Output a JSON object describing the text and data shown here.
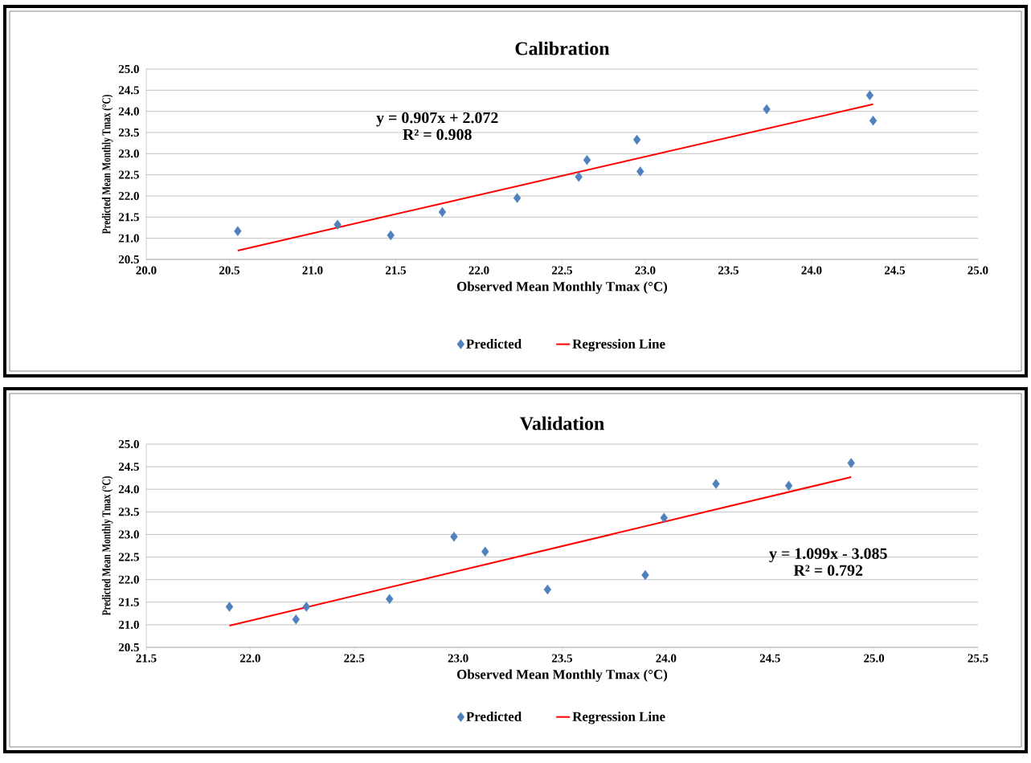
{
  "chart_data": [
    {
      "type": "scatter",
      "title": "Calibration",
      "xlabel": "Observed  Mean Monthly Tmax (°C)",
      "ylabel": "Predicted Mean Monthly Tmax (°C)",
      "annotations": [
        "y = 0.907x + 2.072",
        "R² = 0.908"
      ],
      "series": [
        {
          "name": "Predicted",
          "color": "#4f81bd",
          "x": [
            20.55,
            21.15,
            21.47,
            21.78,
            22.23,
            22.6,
            22.65,
            22.95,
            22.97,
            23.73,
            24.35,
            24.37
          ],
          "values": [
            21.17,
            21.32,
            21.07,
            21.62,
            21.95,
            22.45,
            22.85,
            23.33,
            22.58,
            24.05,
            24.38,
            23.78
          ]
        },
        {
          "name": "Regression Line",
          "type": "line",
          "color": "#ff0000",
          "marker": "none",
          "line_style": "solid",
          "x": [
            20.55,
            24.37
          ],
          "values": [
            20.71,
            24.17
          ]
        }
      ],
      "marker": "diamond",
      "grid": "y",
      "legend": "bottom",
      "xlim": [
        20,
        25
      ],
      "ylim": [
        20.5,
        25
      ],
      "xticks": [
        {
          "value": 20,
          "label": "20.0"
        },
        {
          "value": 20.5,
          "label": "20.5"
        },
        {
          "value": 21,
          "label": "21.0"
        },
        {
          "value": 21.5,
          "label": "21.5"
        },
        {
          "value": 22,
          "label": "22.0"
        },
        {
          "value": 22.5,
          "label": "22.5"
        },
        {
          "value": 23,
          "label": "23.0"
        },
        {
          "value": 23.5,
          "label": "23.5"
        },
        {
          "value": 24,
          "label": "24.0"
        },
        {
          "value": 24.5,
          "label": "24.5"
        },
        {
          "value": 25,
          "label": "25.0"
        }
      ],
      "yticks": [
        {
          "value": 20.5,
          "label": "20.5"
        },
        {
          "value": 21,
          "label": "21.0"
        },
        {
          "value": 21.5,
          "label": "21.5"
        },
        {
          "value": 22,
          "label": "22.0"
        },
        {
          "value": 22.5,
          "label": "22.5"
        },
        {
          "value": 23,
          "label": "23.0"
        },
        {
          "value": 23.5,
          "label": "23.5"
        },
        {
          "value": 24,
          "label": "24.0"
        },
        {
          "value": 24.5,
          "label": "24.5"
        },
        {
          "value": 25,
          "label": "25.0"
        }
      ]
    },
    {
      "type": "scatter",
      "title": "Validation",
      "xlabel": "Observed  Mean Monthly Tmax (°C)",
      "ylabel": "Predicted Mean Monthly Tmax (°C)",
      "annotations": [
        "y = 1.099x - 3.085",
        "R² = 0.792"
      ],
      "series": [
        {
          "name": "Predicted",
          "color": "#4f81bd",
          "x": [
            21.9,
            22.22,
            22.27,
            22.67,
            22.98,
            23.13,
            23.43,
            23.9,
            23.99,
            24.24,
            24.59,
            24.89
          ],
          "values": [
            21.4,
            21.12,
            21.4,
            21.57,
            22.95,
            22.62,
            21.78,
            22.1,
            23.37,
            24.12,
            24.08,
            24.58
          ]
        },
        {
          "name": "Regression Line",
          "type": "line",
          "color": "#ff0000",
          "marker": "none",
          "line_style": "solid",
          "x": [
            21.9,
            24.89
          ],
          "values": [
            20.98,
            24.27
          ]
        }
      ],
      "marker": "diamond",
      "grid": "y",
      "legend": "bottom",
      "xlim": [
        21.5,
        25.5
      ],
      "ylim": [
        20.5,
        25
      ],
      "xticks": [
        {
          "value": 21.5,
          "label": "21.5"
        },
        {
          "value": 22,
          "label": "22.0"
        },
        {
          "value": 22.5,
          "label": "22.5"
        },
        {
          "value": 23,
          "label": "23.0"
        },
        {
          "value": 23.5,
          "label": "23.5"
        },
        {
          "value": 24,
          "label": "24.0"
        },
        {
          "value": 24.5,
          "label": "24.5"
        },
        {
          "value": 25,
          "label": "25.0"
        },
        {
          "value": 25.5,
          "label": "25.5"
        }
      ],
      "yticks": [
        {
          "value": 20.5,
          "label": "20.5"
        },
        {
          "value": 21,
          "label": "21.0"
        },
        {
          "value": 21.5,
          "label": "21.5"
        },
        {
          "value": 22,
          "label": "22.0"
        },
        {
          "value": 22.5,
          "label": "22.5"
        },
        {
          "value": 23,
          "label": "23.0"
        },
        {
          "value": 23.5,
          "label": "23.5"
        },
        {
          "value": 24,
          "label": "24.0"
        },
        {
          "value": 24.5,
          "label": "24.5"
        },
        {
          "value": 25,
          "label": "25.0"
        }
      ]
    }
  ]
}
